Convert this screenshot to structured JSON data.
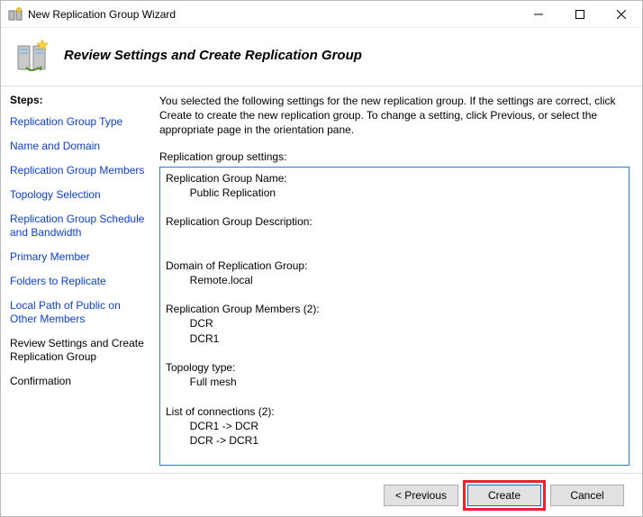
{
  "window": {
    "title": "New Replication Group Wizard"
  },
  "header": {
    "heading": "Review Settings and Create Replication Group"
  },
  "sidebar": {
    "label": "Steps:",
    "items": [
      {
        "label": "Replication Group Type",
        "kind": "link"
      },
      {
        "label": "Name and Domain",
        "kind": "link"
      },
      {
        "label": "Replication Group Members",
        "kind": "link"
      },
      {
        "label": "Topology Selection",
        "kind": "link"
      },
      {
        "label": "Replication Group Schedule and Bandwidth",
        "kind": "link"
      },
      {
        "label": "Primary Member",
        "kind": "link"
      },
      {
        "label": "Folders to Replicate",
        "kind": "link"
      },
      {
        "label": "Local Path of Public on Other Members",
        "kind": "link"
      },
      {
        "label": "Review Settings and Create Replication Group",
        "kind": "current"
      },
      {
        "label": "Confirmation",
        "kind": "plain"
      }
    ]
  },
  "content": {
    "intro": "You selected the following settings for the new replication group. If the settings are correct, click Create to create the new replication group. To change a setting, click Previous, or select the appropriate page in the orientation pane.",
    "settings_label": "Replication group settings:",
    "settings_text": "Replication Group Name:\n\tPublic Replication\n\nReplication Group Description:\n\n\nDomain of Replication Group:\n\tRemote.local\n\nReplication Group Members (2):\n\tDCR\n\tDCR1\n\nTopology type:\n\tFull mesh\n\nList of connections (2):\n\tDCR1 -> DCR\n\tDCR -> DCR1\n\nDefault Connection Schedule:\n\tReplicate continuously with Full bandwidth\n"
  },
  "footer": {
    "previous": "< Previous",
    "create": "Create",
    "cancel": "Cancel"
  },
  "colors": {
    "link": "#0a3eda",
    "highlight_border": "#e9242f",
    "textbox_border": "#2a7ad6"
  }
}
